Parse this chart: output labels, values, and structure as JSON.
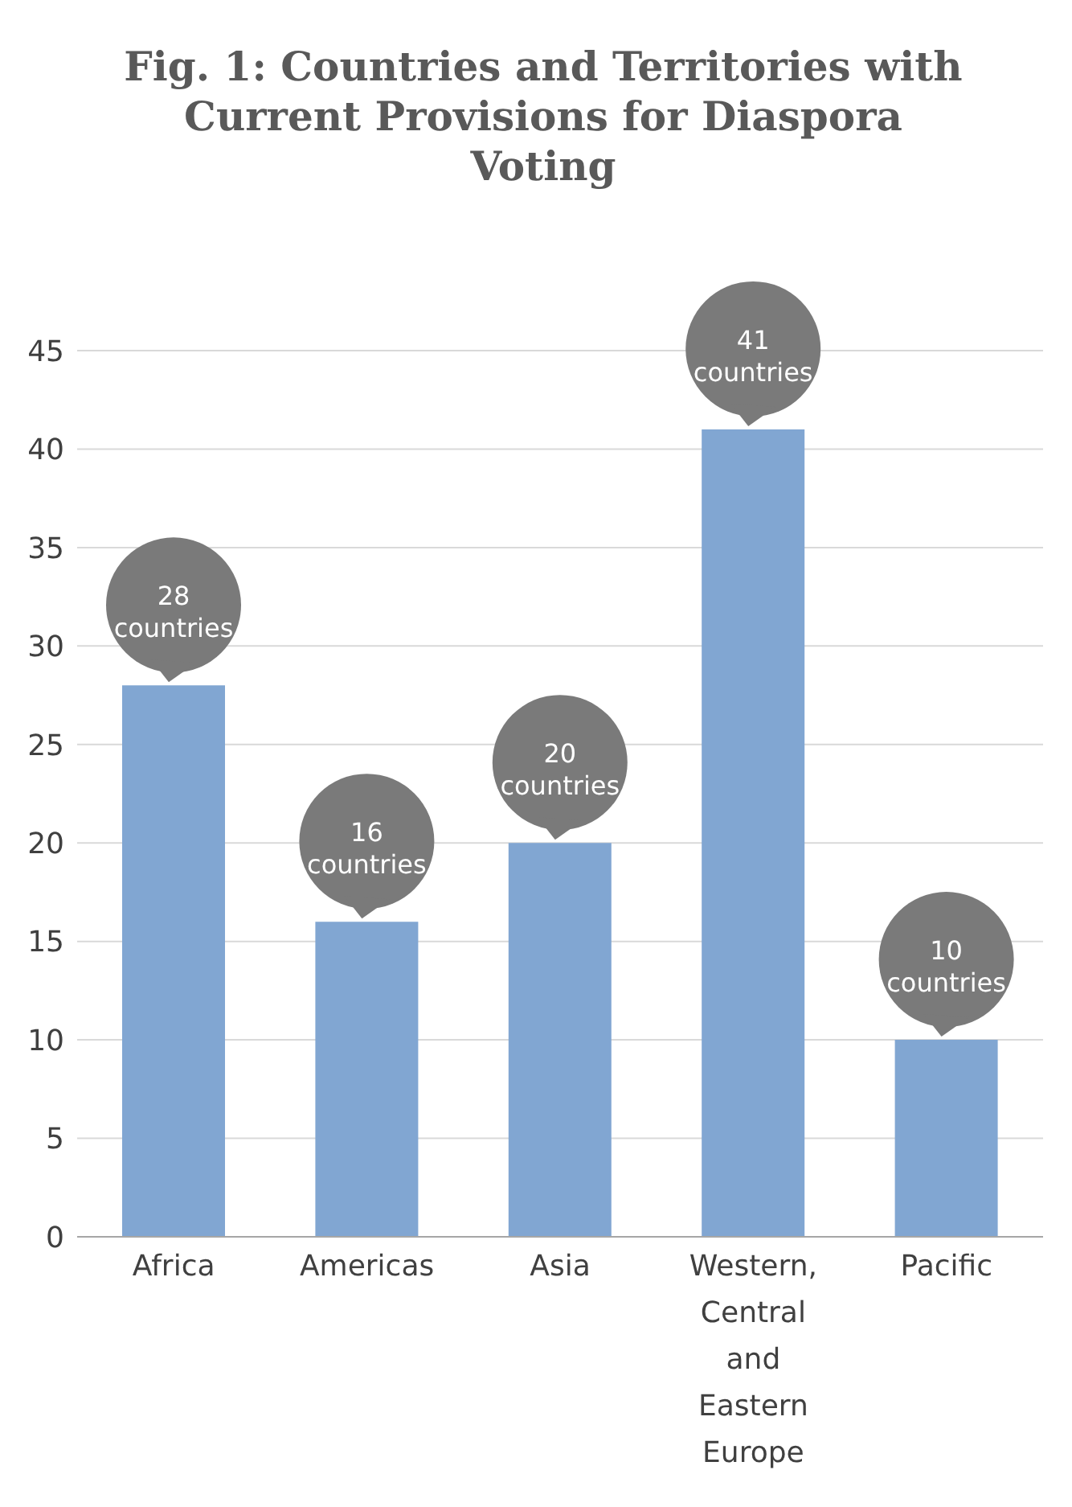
{
  "chart_data": {
    "type": "bar",
    "title": "Fig. 1: Countries and Territories with Current Provisions for Diaspora Voting",
    "categories": [
      "Africa",
      "Americas",
      "Asia",
      "Western, Central and Eastern Europe",
      "Pacific"
    ],
    "values": [
      28,
      16,
      20,
      41,
      10
    ],
    "value_labels": [
      "28 countries",
      "16 countries",
      "20 countries",
      "41 countries",
      "10 countries"
    ],
    "color": "#81a6d2",
    "ylim": [
      0,
      45
    ],
    "yticks": [
      0,
      5,
      10,
      15,
      20,
      25,
      30,
      35,
      40,
      45
    ],
    "grid": "y"
  }
}
